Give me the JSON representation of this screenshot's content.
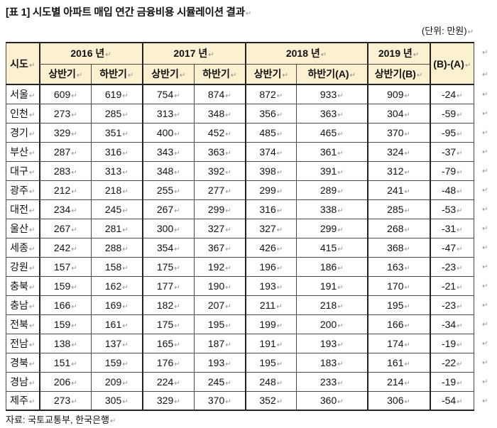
{
  "pm": "↵",
  "title": "[표 1] 시도별 아파트 매입 연간 금융비용 시뮬레이션 결과",
  "unit_note": "(단위: 만원)",
  "source": "자료: 국토교통부, 한국은행",
  "colors": {
    "header_bg": "#FBF0CF",
    "border_thin": "#4a4a4a",
    "border_thick": "#222222",
    "mark_gray": "#8f8f8f"
  },
  "table": {
    "region_header": "시도",
    "diff_header": "(B)-(A)",
    "years": [
      {
        "label": "2016 년",
        "cols": [
          "상반기",
          "하반기"
        ]
      },
      {
        "label": "2017 년",
        "cols": [
          "상반기",
          "하반기"
        ]
      },
      {
        "label": "2018 년",
        "cols": [
          "상반기",
          "하반기(A)"
        ]
      },
      {
        "label": "2019 년",
        "cols": [
          "상반기(B)"
        ]
      }
    ],
    "rows": [
      {
        "region": "서울",
        "values": [
          609,
          619,
          754,
          874,
          872,
          933,
          909,
          -24
        ]
      },
      {
        "region": "인천",
        "values": [
          273,
          285,
          313,
          348,
          356,
          363,
          304,
          -59
        ]
      },
      {
        "region": "경기",
        "values": [
          329,
          351,
          400,
          452,
          485,
          465,
          370,
          -95
        ]
      },
      {
        "region": "부산",
        "values": [
          287,
          316,
          343,
          363,
          374,
          361,
          324,
          -37
        ]
      },
      {
        "region": "대구",
        "values": [
          283,
          313,
          348,
          392,
          398,
          391,
          312,
          -79
        ]
      },
      {
        "region": "광주",
        "values": [
          212,
          218,
          255,
          277,
          299,
          289,
          241,
          -48
        ]
      },
      {
        "region": "대전",
        "values": [
          234,
          245,
          267,
          299,
          316,
          338,
          285,
          -53
        ]
      },
      {
        "region": "울산",
        "values": [
          267,
          281,
          300,
          327,
          327,
          299,
          268,
          -31
        ]
      },
      {
        "region": "세종",
        "values": [
          242,
          288,
          354,
          367,
          426,
          415,
          368,
          -47
        ]
      },
      {
        "region": "강원",
        "values": [
          157,
          158,
          175,
          192,
          196,
          186,
          163,
          -23
        ]
      },
      {
        "region": "충북",
        "values": [
          159,
          162,
          177,
          190,
          193,
          191,
          170,
          -21
        ]
      },
      {
        "region": "충남",
        "values": [
          166,
          169,
          182,
          207,
          211,
          218,
          195,
          -23
        ]
      },
      {
        "region": "전북",
        "values": [
          159,
          161,
          175,
          195,
          199,
          200,
          166,
          -34
        ]
      },
      {
        "region": "전남",
        "values": [
          138,
          137,
          165,
          187,
          191,
          193,
          174,
          -19
        ]
      },
      {
        "region": "경북",
        "values": [
          151,
          159,
          176,
          193,
          195,
          183,
          161,
          -22
        ]
      },
      {
        "region": "경남",
        "values": [
          206,
          209,
          224,
          245,
          248,
          233,
          214,
          -19
        ]
      },
      {
        "region": "제주",
        "values": [
          273,
          305,
          329,
          370,
          352,
          360,
          306,
          -54
        ]
      }
    ]
  }
}
